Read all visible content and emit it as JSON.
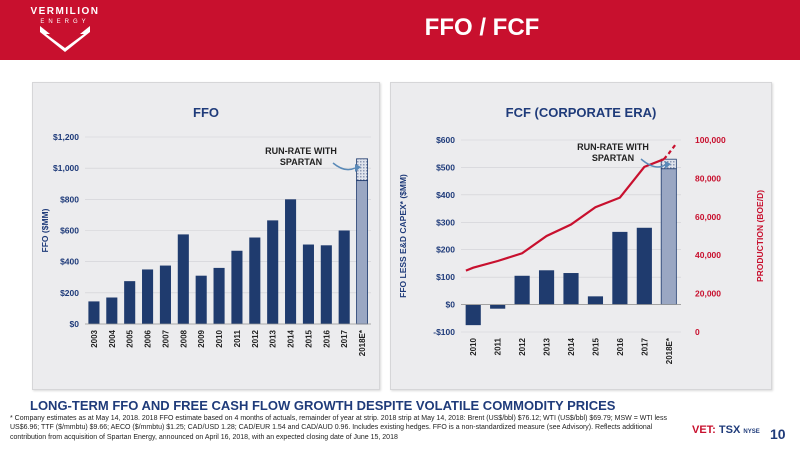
{
  "header": {
    "logo_line1": "VERMILION",
    "logo_line2": "ENERGY",
    "title": "FFO / FCF"
  },
  "colors": {
    "header_red": "#c8102e",
    "bar_navy": "#1f3b6e",
    "line_red": "#c8102e",
    "projection_bar": "#9aa7c3",
    "panel_bg": "#ececee",
    "tagline_blue": "#1f3b7a"
  },
  "chart_data": [
    {
      "type": "bar",
      "title": "FFO",
      "ylabel": "FFO ($MM)",
      "categories": [
        "2003",
        "2004",
        "2005",
        "2006",
        "2007",
        "2008",
        "2009",
        "2010",
        "2011",
        "2012",
        "2013",
        "2014",
        "2015",
        "2016",
        "2017",
        "2018E*"
      ],
      "values": [
        145,
        170,
        275,
        350,
        375,
        575,
        310,
        360,
        470,
        555,
        665,
        800,
        510,
        505,
        600,
        920
      ],
      "run_rate_top": 1060,
      "projection_index": 15,
      "ylim": [
        0,
        1200
      ],
      "yticks": [
        0,
        200,
        400,
        600,
        800,
        1000,
        1200
      ],
      "ytick_labels": [
        "$0",
        "$200",
        "$400",
        "$600",
        "$800",
        "$1,000",
        "$1,200"
      ],
      "annotation": "RUN-RATE WITH SPARTAN"
    },
    {
      "type": "bar",
      "title": "FCF (CORPORATE ERA)",
      "ylabel": "FFO LESS E&D CAPEX* ($MM)",
      "y2label": "PRODUCTION (BOE/D)",
      "categories": [
        "2010",
        "2011",
        "2012",
        "2013",
        "2014",
        "2015",
        "2016",
        "2017",
        "2018E*"
      ],
      "values": [
        -75,
        -15,
        105,
        125,
        115,
        30,
        265,
        280,
        495
      ],
      "run_rate_top": 530,
      "projection_index": 8,
      "ylim": [
        -100,
        600
      ],
      "yticks": [
        -100,
        0,
        100,
        200,
        300,
        400,
        500,
        600
      ],
      "ytick_labels": [
        "-$100",
        "$0",
        "$100",
        "$200",
        "$300",
        "$400",
        "$500",
        "$600"
      ],
      "y2lim": [
        0,
        100000
      ],
      "y2ticks": [
        0,
        20000,
        40000,
        60000,
        80000,
        100000
      ],
      "y2tick_labels": [
        "0",
        "20,000",
        "40,000",
        "60,000",
        "80,000",
        "100,000"
      ],
      "line_series": {
        "name": "Production",
        "x": [
          -0.3,
          0,
          1,
          2,
          3,
          4,
          5,
          6,
          7,
          7.8,
          8,
          8.3
        ],
        "values": [
          32000,
          33500,
          37000,
          41000,
          50000,
          56000,
          65000,
          70000,
          86000,
          90000,
          93000,
          98000
        ],
        "dashed_from_index": 9
      },
      "annotation": "RUN-RATE WITH SPARTAN"
    }
  ],
  "tagline": "LONG-TERM FFO AND FREE CASH FLOW GROWTH DESPITE VOLATILE COMMODITY PRICES",
  "footnote": "* Company estimates as at May 14, 2018. 2018 FFO estimate based on 4 months of actuals, remainder of year at strip. 2018 strip at May 14, 2018: Brent (US$/bbl) $76.12; WTI (US$/bbl) $69.79; MSW = WTI less US$6.96; TTF ($/mmbtu) $9.66; AECO ($/mmbtu) $1.25; CAD/USD 1.28; CAD/EUR 1.54 and CAD/AUD 0.96. Includes existing hedges. FFO is a non-standardized measure (see Advisory). Reflects additional contribution from acquisition of Spartan Energy, announced on April 16, 2018, with an expected closing date of June 15, 2018",
  "ticker": {
    "vet": "VET:",
    "tsx": "TSX",
    "nyse": "NYSE"
  },
  "page_number": "10"
}
